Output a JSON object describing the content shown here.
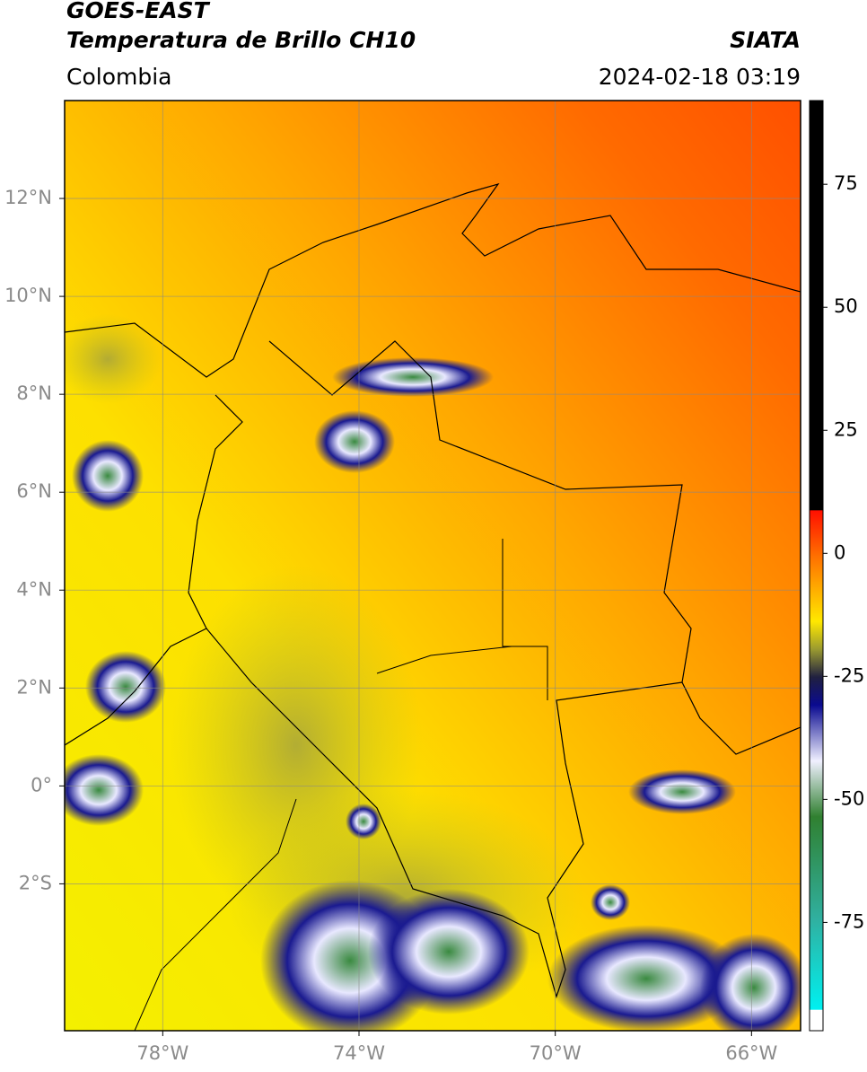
{
  "header": {
    "line1": "GOES-EAST",
    "line2": "Temperatura de Brillo CH10",
    "region": "Colombia",
    "source": "SIATA",
    "timestamp": "2024-02-18 03:19"
  },
  "map": {
    "xlim": [
      -80,
      -65
    ],
    "ylim": [
      -5,
      14
    ],
    "grid": true,
    "xticks": [
      {
        "value": -78,
        "label": "78°W"
      },
      {
        "value": -74,
        "label": "74°W"
      },
      {
        "value": -70,
        "label": "70°W"
      },
      {
        "value": -66,
        "label": "66°W"
      }
    ],
    "yticks": [
      {
        "value": 12,
        "label": "12°N"
      },
      {
        "value": 10,
        "label": "10°N"
      },
      {
        "value": 8,
        "label": "8°N"
      },
      {
        "value": 6,
        "label": "6°N"
      },
      {
        "value": 4,
        "label": "4°N"
      },
      {
        "value": 2,
        "label": "2°N"
      },
      {
        "value": 0,
        "label": "0°"
      },
      {
        "value": -2,
        "label": "2°S"
      }
    ]
  },
  "colorbar": {
    "lim": [
      -97,
      92
    ],
    "ticks": [
      75,
      50,
      25,
      0,
      -25,
      -50,
      -75
    ]
  }
}
